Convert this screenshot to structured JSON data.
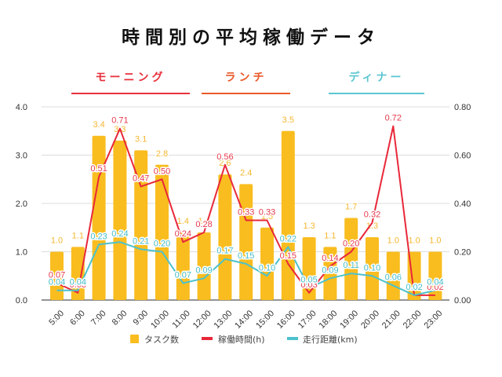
{
  "header": {
    "title": "時間別の平均稼働データ",
    "sections": [
      {
        "label": "モーニング",
        "color": "#E8303C"
      },
      {
        "label": "ランチ",
        "color": "#EA5A2A"
      },
      {
        "label": "ディナー",
        "color": "#5CC6D2"
      }
    ]
  },
  "chart_data": {
    "type": "bar",
    "title": "時間別の平均稼働データ",
    "categories": [
      "5:00",
      "6:00",
      "7:00",
      "8:00",
      "9:00",
      "10:00",
      "11:00",
      "12:00",
      "13:00",
      "14:00",
      "15:00",
      "16:00",
      "17:00",
      "18:00",
      "19:00",
      "20:00",
      "21:00",
      "22:00",
      "23:00"
    ],
    "series": [
      {
        "name": "タスク数",
        "type": "bar",
        "axis": "left",
        "color": "#F9BD1F",
        "label_color": "#F5B731",
        "values": [
          1.0,
          1.1,
          3.4,
          3.3,
          3.1,
          2.8,
          1.4,
          1.4,
          2.6,
          2.4,
          1.5,
          3.5,
          1.3,
          1.1,
          1.7,
          1.3,
          1.0,
          1.0,
          1.0
        ]
      },
      {
        "name": "稼働時間(h)",
        "type": "line",
        "axis": "right",
        "color": "#E8283A",
        "label_color": "#E53A4E",
        "values": [
          0.07,
          0.03,
          0.51,
          0.71,
          0.47,
          0.5,
          0.24,
          0.28,
          0.56,
          0.33,
          0.33,
          0.15,
          0.03,
          0.14,
          0.2,
          0.32,
          0.72,
          0.02,
          0.02
        ]
      },
      {
        "name": "走行距離(km)",
        "type": "line",
        "axis": "right",
        "color": "#4CC1CC",
        "label_color": "#45BCC8",
        "values": [
          0.04,
          0.04,
          0.23,
          0.24,
          0.21,
          0.2,
          0.07,
          0.09,
          0.17,
          0.15,
          0.1,
          0.22,
          0.05,
          0.09,
          0.11,
          0.1,
          0.06,
          0.02,
          0.04
        ]
      }
    ],
    "left_axis": {
      "ylim": [
        0,
        4.0
      ],
      "ticks": [
        "0.0",
        "1.0",
        "2.0",
        "3.0",
        "4.0"
      ],
      "tick_values": [
        0,
        1,
        2,
        3,
        4
      ]
    },
    "right_axis": {
      "ylim": [
        0,
        0.8
      ],
      "ticks": [
        "0.00",
        "0.20",
        "0.40",
        "0.60",
        "0.80"
      ],
      "tick_values": [
        0,
        0.2,
        0.4,
        0.6,
        0.8
      ]
    },
    "grid": true,
    "legend_position": "bottom",
    "xlabel": "",
    "ylabel": ""
  }
}
